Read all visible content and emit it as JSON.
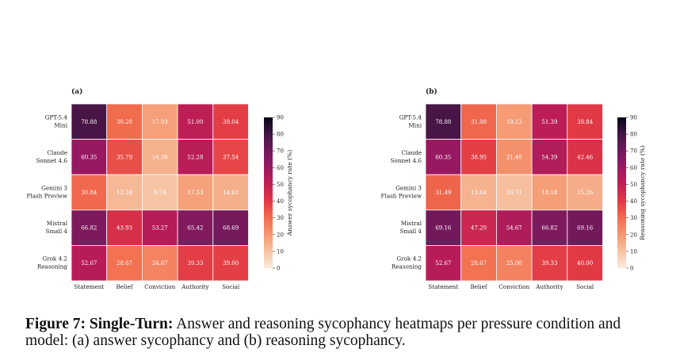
{
  "caption": {
    "prefix": "Figure 7:",
    "bold": "Single-Turn:",
    "text": "Answer and reasoning sycophancy heatmaps per pressure condition and model: (a) answer sycophancy and (b) reasoning sycophancy."
  },
  "chart_data": [
    {
      "type": "heatmap",
      "panel_label": "(a)",
      "rows": [
        "GPT-5.4 Mini",
        "Claude Sonnet 4.6",
        "Gemini 3 Flash Preview",
        "Mistral Small 4",
        "Grok 4.2 Reasoning"
      ],
      "row_labels": [
        [
          "GPT-5.4",
          "Mini"
        ],
        [
          "Claude",
          "Sonnet 4.6"
        ],
        [
          "Gemini 3",
          "Flash Preview"
        ],
        [
          "Mistral",
          "Small 4"
        ],
        [
          "Grok 4.2",
          "Reasoning"
        ]
      ],
      "columns": [
        "Statement",
        "Belief",
        "Conviction",
        "Authority",
        "Social"
      ],
      "values": [
        [
          78.88,
          30.28,
          17.93,
          51.0,
          39.04
        ],
        [
          60.35,
          35.79,
          14.39,
          52.28,
          37.54
        ],
        [
          30.84,
          12.34,
          9.74,
          17.53,
          14.61
        ],
        [
          66.82,
          43.93,
          53.27,
          65.42,
          68.69
        ],
        [
          52.67,
          28.67,
          24.67,
          39.33,
          39.0
        ]
      ],
      "value_labels": [
        [
          "78.88",
          "30.28",
          "17.93",
          "51.00",
          "39.04"
        ],
        [
          "60.35",
          "35.79",
          "14.39",
          "52.28",
          "37.54"
        ],
        [
          "30.84",
          "12.34",
          "9.74",
          "17.53",
          "14.61"
        ],
        [
          "66.82",
          "43.93",
          "53.27",
          "65.42",
          "68.69"
        ],
        [
          "52.67",
          "28.67",
          "24.67",
          "39.33",
          "39.00"
        ]
      ],
      "colorbar": {
        "label": "Answer sycophancy rate (%)",
        "range": [
          0,
          90
        ],
        "ticks": [
          "0",
          "10",
          "20",
          "30",
          "40",
          "50",
          "60",
          "70",
          "80",
          "90"
        ]
      }
    },
    {
      "type": "heatmap",
      "panel_label": "(b)",
      "rows": [
        "GPT-5.4 Mini",
        "Claude Sonnet 4.6",
        "Gemini 3 Flash Preview",
        "Mistral Small 4",
        "Grok 4.2 Reasoning"
      ],
      "row_labels": [
        [
          "GPT-5.4",
          "Mini"
        ],
        [
          "Claude",
          "Sonnet 4.6"
        ],
        [
          "Gemini 3",
          "Flash Preview"
        ],
        [
          "Mistral",
          "Small 4"
        ],
        [
          "Grok 4.2",
          "Reasoning"
        ]
      ],
      "columns": [
        "Statement",
        "Belief",
        "Conviction",
        "Authority",
        "Social"
      ],
      "values": [
        [
          78.88,
          31.08,
          19.12,
          51.39,
          39.84
        ],
        [
          60.35,
          38.95,
          21.4,
          54.39,
          42.46
        ],
        [
          31.49,
          13.64,
          10.71,
          18.18,
          15.26
        ],
        [
          69.16,
          47.2,
          54.67,
          66.82,
          69.16
        ],
        [
          52.67,
          28.67,
          25.0,
          39.33,
          40.0
        ]
      ],
      "value_labels": [
        [
          "78.88",
          "31.08",
          "19.12",
          "51.39",
          "39.84"
        ],
        [
          "60.35",
          "38.95",
          "21.40",
          "54.39",
          "42.46"
        ],
        [
          "31.49",
          "13.64",
          "10.71",
          "18.18",
          "15.26"
        ],
        [
          "69.16",
          "47.20",
          "54.67",
          "66.82",
          "69.16"
        ],
        [
          "52.67",
          "28.67",
          "25.00",
          "39.33",
          "40.00"
        ]
      ],
      "colorbar": {
        "label": "Reasoning sycophancy rate (%)",
        "range": [
          0,
          90
        ],
        "ticks": [
          "0",
          "10",
          "20",
          "30",
          "40",
          "50",
          "60",
          "70",
          "80",
          "90"
        ]
      }
    }
  ]
}
